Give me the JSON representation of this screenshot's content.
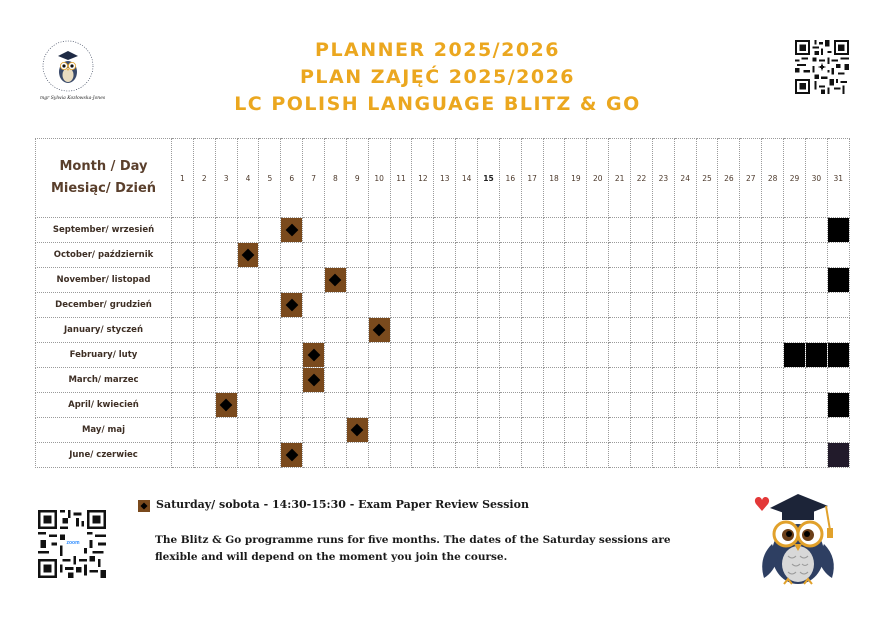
{
  "header": {
    "title_lines": [
      "PLANNER 2025/2026",
      "PLAN ZAJĘĆ 2025/2026",
      "LC POLISH LANGUAGE BLITZ & GO"
    ],
    "logo_ring_text": "BILINGUAL LEARNING CONSULTANCY",
    "logo_signature": "mgr Sylwia Kozłowska-Jones"
  },
  "colors": {
    "title": "#eba71f",
    "session": "#7a4a1d",
    "blocked": "#000000",
    "blocked_dark": "#221b2b",
    "label": "#5a3f2c"
  },
  "planner": {
    "corner_line1": "Month / Day",
    "corner_line2": "Miesiąc/ Dzień",
    "days": [
      "1",
      "2",
      "3",
      "4",
      "5",
      "6",
      "7",
      "8",
      "9",
      "10",
      "11",
      "12",
      "13",
      "14",
      "15",
      "16",
      "17",
      "18",
      "19",
      "20",
      "21",
      "22",
      "23",
      "24",
      "25",
      "26",
      "27",
      "28",
      "29",
      "30",
      "31"
    ],
    "months": [
      {
        "label": "September/ wrzesień",
        "sessions": [
          6
        ],
        "blocked": [
          31
        ],
        "blocked_dark": []
      },
      {
        "label": "October/ październik",
        "sessions": [
          4
        ],
        "blocked": [],
        "blocked_dark": []
      },
      {
        "label": "November/ listopad",
        "sessions": [
          8
        ],
        "blocked": [
          31
        ],
        "blocked_dark": []
      },
      {
        "label": "December/ grudzień",
        "sessions": [
          6
        ],
        "blocked": [],
        "blocked_dark": []
      },
      {
        "label": "January/ styczeń",
        "sessions": [
          10
        ],
        "blocked": [],
        "blocked_dark": []
      },
      {
        "label": "February/ luty",
        "sessions": [
          7
        ],
        "blocked": [
          29,
          30,
          31
        ],
        "blocked_dark": []
      },
      {
        "label": "March/ marzec",
        "sessions": [
          7
        ],
        "blocked": [],
        "blocked_dark": []
      },
      {
        "label": "April/ kwiecień",
        "sessions": [
          3
        ],
        "blocked": [
          31
        ],
        "blocked_dark": []
      },
      {
        "label": "May/ maj",
        "sessions": [
          9
        ],
        "blocked": [],
        "blocked_dark": []
      },
      {
        "label": "June/ czerwiec",
        "sessions": [
          6
        ],
        "blocked": [],
        "blocked_dark": [
          31
        ]
      }
    ]
  },
  "legend": {
    "text": "Saturday/ sobota - 14:30-15:30 - Exam Paper Review Session"
  },
  "note": {
    "text": "The Blitz & Go programme runs for five months. The dates of the Saturday sessions are flexible and will depend on the moment you join the course."
  },
  "qr_bottom": {
    "tag": "zoom"
  },
  "icons": {
    "logo": "owl-logo-icon",
    "qr_top": "qr-code-icon",
    "qr_bottom": "qr-code-icon",
    "mascot": "owl-graduate-icon",
    "legend": "diamond-icon"
  }
}
